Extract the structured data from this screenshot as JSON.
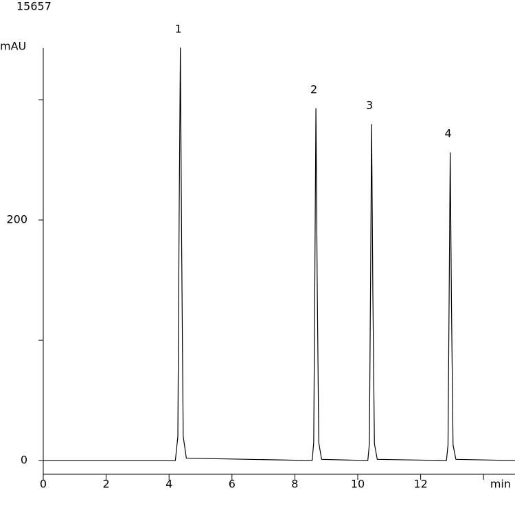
{
  "chart_data": {
    "type": "line",
    "title": "15657",
    "ylabel": "mAU",
    "xlabel": "min",
    "x": [
      0,
      4.2,
      4.28,
      4.32,
      4.36,
      4.4,
      4.45,
      4.55,
      8.55,
      8.6,
      8.64,
      8.67,
      8.71,
      8.76,
      8.85,
      10.32,
      10.37,
      10.41,
      10.44,
      10.48,
      10.53,
      10.62,
      12.82,
      12.87,
      12.91,
      12.94,
      12.98,
      13.03,
      13.12,
      15
    ],
    "series": [
      {
        "color": "#000000",
        "values": [
          0,
          0,
          20,
          200,
          343,
          180,
          20,
          2,
          0,
          15,
          170,
          292.6,
          150,
          15,
          1,
          0,
          14,
          160,
          279.4,
          140,
          14,
          1,
          0,
          13,
          150,
          256,
          130,
          13,
          1,
          0
        ]
      }
    ],
    "annotations": [
      {
        "text": "1",
        "x": 4.36,
        "y": 343
      },
      {
        "text": "2",
        "x": 8.67,
        "y": 292.6
      },
      {
        "text": "3",
        "x": 10.44,
        "y": 279.4
      },
      {
        "text": "4",
        "x": 12.94,
        "y": 256
      }
    ],
    "xlim": [
      0,
      15
    ],
    "xticks": [
      0,
      2,
      4,
      6,
      8,
      10,
      12
    ],
    "x_minor_ticks": [
      14
    ],
    "ylim": [
      -11.4,
      342.9
    ],
    "yticks": [
      0,
      200
    ],
    "y_minor_ticks": [
      100,
      300
    ],
    "grid": false
  }
}
